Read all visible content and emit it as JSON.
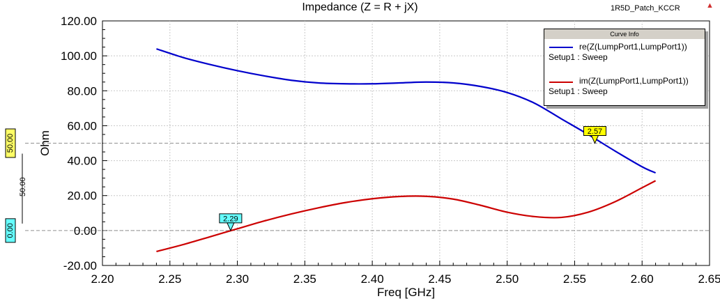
{
  "header": {
    "title": "Impedance (Z = R + jX)",
    "design_name": "1R5D_Patch_KCCR",
    "warning_icon": "warning-triangle-icon"
  },
  "legend": {
    "title": "Curve Info",
    "entries": [
      {
        "name": "re(Z(LumpPort1,LumpPort1))",
        "sub": "Setup1 : Sweep",
        "color": "#0000cc"
      },
      {
        "name": "im(Z(LumpPort1,LumpPort1))",
        "sub": "Setup1 : Sweep",
        "color": "#cc0000"
      }
    ]
  },
  "markers": {
    "left_markers": [
      {
        "label": "50.00",
        "color": "#ffff66",
        "value": 50
      },
      {
        "label": "0.00",
        "color": "#66ffff",
        "value": 0
      }
    ],
    "span_label": "50.00",
    "curve_markers": [
      {
        "label": "2.57",
        "x": 2.565,
        "y": 50,
        "color": "#ffff00"
      },
      {
        "label": "2.29",
        "x": 2.295,
        "y": 0,
        "color": "#66ffff"
      }
    ]
  },
  "chart_data": {
    "type": "line",
    "title": "Impedance (Z = R + jX)",
    "xlabel": "Freq [GHz]",
    "ylabel": "Ohm",
    "xlim": [
      2.2,
      2.65
    ],
    "ylim": [
      -20,
      120
    ],
    "x_ticks": [
      "2.20",
      "2.25",
      "2.30",
      "2.35",
      "2.40",
      "2.45",
      "2.50",
      "2.55",
      "2.60",
      "2.65"
    ],
    "y_ticks": [
      "-20.00",
      "0.00",
      "20.00",
      "40.00",
      "60.00",
      "80.00",
      "100.00",
      "120.00"
    ],
    "grid": true,
    "legend_position": "top-right",
    "series": [
      {
        "name": "re(Z(LumpPort1,LumpPort1))",
        "color": "#0000cc",
        "x": [
          2.24,
          2.26,
          2.28,
          2.3,
          2.32,
          2.34,
          2.36,
          2.38,
          2.4,
          2.42,
          2.44,
          2.46,
          2.48,
          2.5,
          2.52,
          2.54,
          2.56,
          2.58,
          2.6,
          2.61
        ],
        "y": [
          104,
          99,
          95,
          91.5,
          88.5,
          86,
          84.5,
          84,
          84,
          84.5,
          85,
          84.5,
          82.5,
          79,
          73,
          64,
          55,
          45.5,
          36.5,
          33
        ]
      },
      {
        "name": "im(Z(LumpPort1,LumpPort1))",
        "color": "#cc0000",
        "x": [
          2.24,
          2.26,
          2.28,
          2.3,
          2.32,
          2.34,
          2.36,
          2.38,
          2.4,
          2.42,
          2.44,
          2.46,
          2.48,
          2.5,
          2.52,
          2.54,
          2.56,
          2.58,
          2.6,
          2.61
        ],
        "y": [
          -12,
          -8,
          -3.5,
          1,
          5.5,
          9.5,
          13,
          16,
          18.2,
          19.5,
          19.6,
          18,
          14.5,
          10.5,
          8,
          7.5,
          10.5,
          16.5,
          24.5,
          28.5
        ]
      }
    ]
  }
}
